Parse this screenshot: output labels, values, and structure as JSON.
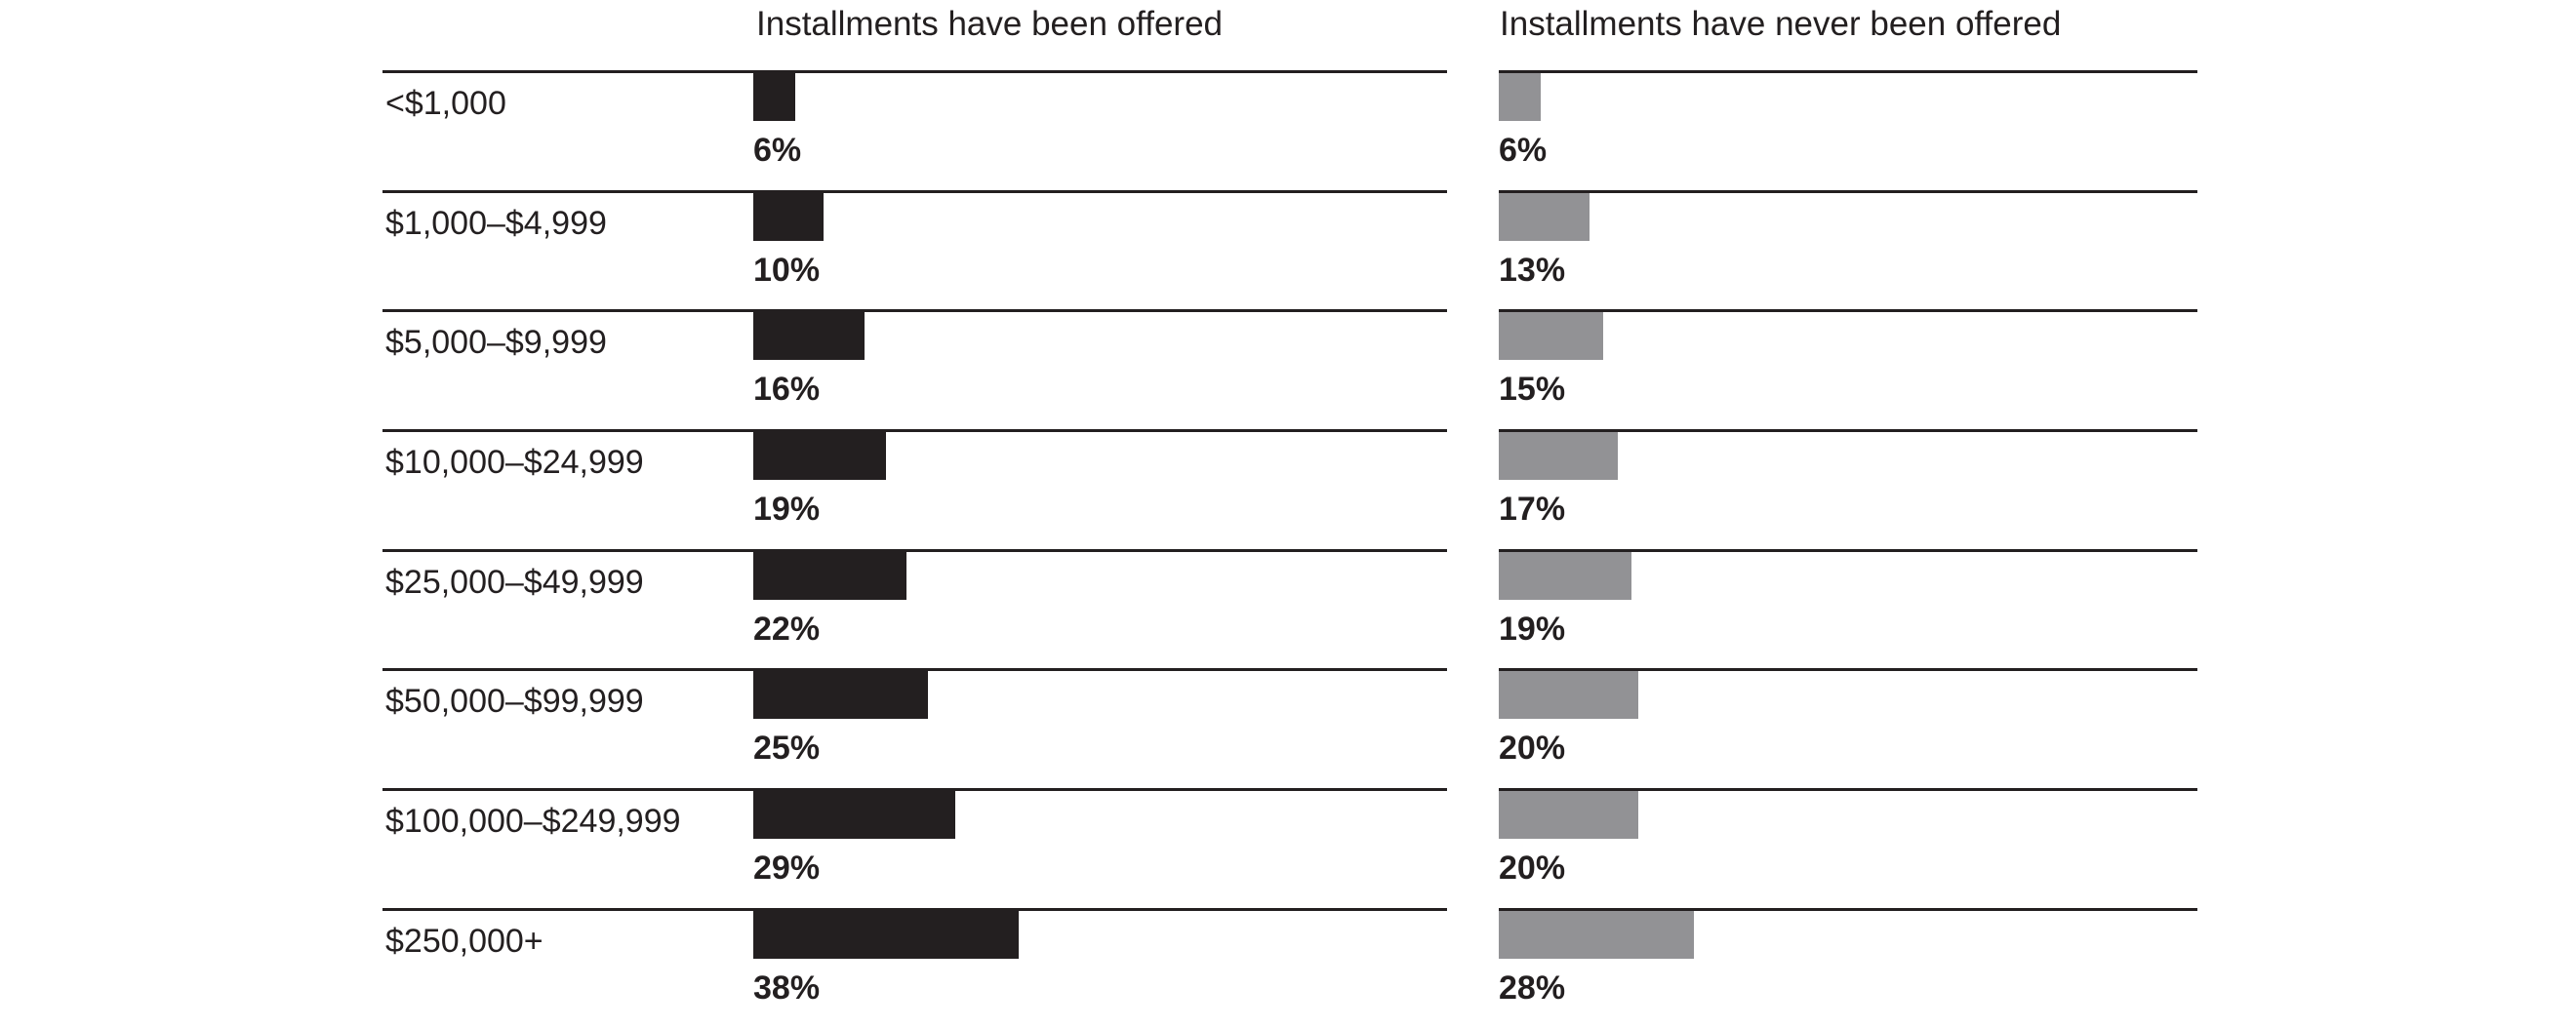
{
  "chart_data": {
    "type": "bar",
    "orientation": "horizontal",
    "grid": false,
    "xlim": [
      0,
      100
    ],
    "value_label_format": "percent",
    "categories": [
      "<$1,000",
      "$1,000–$4,999",
      "$5,000–$9,999",
      "$10,000–$24,999",
      "$25,000–$49,999",
      "$50,000–$99,999",
      "$100,000–$249,999",
      "$250,000+"
    ],
    "series": [
      {
        "name": "Installments have been offered",
        "values": [
          6,
          10,
          16,
          19,
          22,
          25,
          29,
          38
        ],
        "color": "#231f20"
      },
      {
        "name": "Installments have never been offered",
        "values": [
          6,
          13,
          15,
          17,
          19,
          20,
          20,
          28
        ],
        "color": "#929295"
      }
    ],
    "panels": [
      {
        "title": "Installments have been offered"
      },
      {
        "title": "Installments have never been offered"
      }
    ]
  },
  "rows": [
    {
      "category": "<$1,000",
      "offered_value": 6,
      "offered_label": "6%",
      "never_value": 6,
      "never_label": "6%"
    },
    {
      "category": "$1,000–$4,999",
      "offered_value": 10,
      "offered_label": "10%",
      "never_value": 13,
      "never_label": "13%"
    },
    {
      "category": "$5,000–$9,999",
      "offered_value": 16,
      "offered_label": "16%",
      "never_value": 15,
      "never_label": "15%"
    },
    {
      "category": "$10,000–$24,999",
      "offered_value": 19,
      "offered_label": "19%",
      "never_value": 17,
      "never_label": "17%"
    },
    {
      "category": "$25,000–$49,999",
      "offered_value": 22,
      "offered_label": "22%",
      "never_value": 19,
      "never_label": "19%"
    },
    {
      "category": "$50,000–$99,999",
      "offered_value": 25,
      "offered_label": "25%",
      "never_value": 20,
      "never_label": "20%"
    },
    {
      "category": "$100,000–$249,999",
      "offered_value": 29,
      "offered_label": "29%",
      "never_value": 20,
      "never_label": "20%"
    },
    {
      "category": "$250,000+",
      "offered_value": 38,
      "offered_label": "38%",
      "never_value": 28,
      "never_label": "28%"
    }
  ],
  "colors": {
    "bar_offered": "#231f20",
    "bar_never": "#929295",
    "rule": "#231f20",
    "text": "#231f20",
    "background": "#ffffff"
  }
}
